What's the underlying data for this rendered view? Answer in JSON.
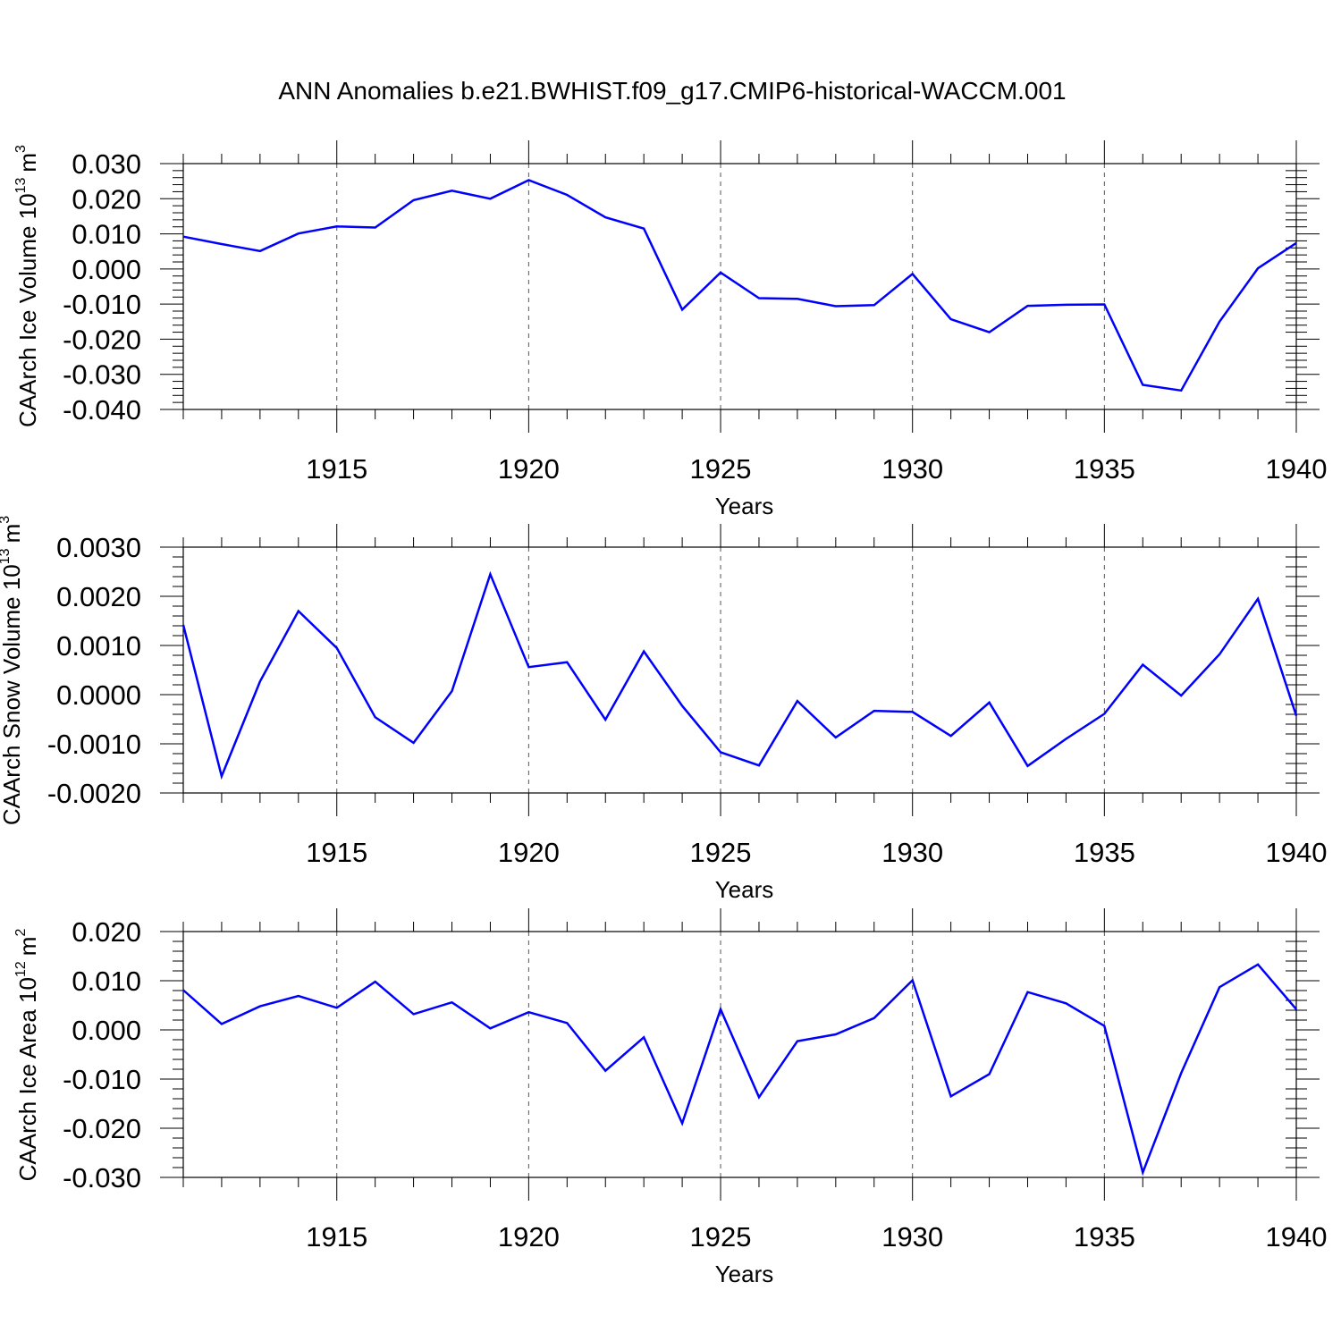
{
  "title": "ANN Anomalies b.e21.BWHIST.f09_g17.CMIP6-historical-WACCM.001",
  "chart_data": [
    {
      "type": "line",
      "ylabel_main": "CAArch Ice Volume 10",
      "ylabel_exp": "13",
      "ylabel_unit": "m",
      "ylabel_unit_exp": "3",
      "xlabel": "Years",
      "xlim": [
        1911,
        1940
      ],
      "ylim": [
        -0.04,
        0.03
      ],
      "yticks": [
        "0.030",
        "0.020",
        "0.010",
        "0.000",
        "-0.010",
        "-0.020",
        "-0.030",
        "-0.040"
      ],
      "ytick_values": [
        0.03,
        0.02,
        0.01,
        0.0,
        -0.01,
        -0.02,
        -0.03,
        -0.04
      ],
      "xticks": [
        "1915",
        "1920",
        "1925",
        "1930",
        "1935",
        "1940"
      ],
      "xtick_values": [
        1915,
        1920,
        1925,
        1930,
        1935,
        1940
      ],
      "color": "#0000ff",
      "x": [
        1911,
        1912,
        1913,
        1914,
        1915,
        1916,
        1917,
        1918,
        1919,
        1920,
        1921,
        1922,
        1923,
        1924,
        1925,
        1926,
        1927,
        1928,
        1929,
        1930,
        1931,
        1932,
        1933,
        1934,
        1935,
        1936,
        1937,
        1938,
        1939,
        1940
      ],
      "values": [
        0.0092,
        0.0071,
        0.0051,
        0.0101,
        0.0121,
        0.0118,
        0.0196,
        0.0223,
        0.02,
        0.0253,
        0.0211,
        0.0147,
        0.0115,
        -0.0116,
        -0.001,
        -0.0083,
        -0.0085,
        -0.0106,
        -0.0103,
        -0.0014,
        -0.0143,
        -0.018,
        -0.0105,
        -0.0102,
        -0.0101,
        -0.033,
        -0.0346,
        -0.015,
        0.0002,
        0.0074
      ]
    },
    {
      "type": "line",
      "ylabel_main": "CAArch Snow Volume 10",
      "ylabel_exp": "13",
      "ylabel_unit": "m",
      "ylabel_unit_exp": "3",
      "xlabel": "Years",
      "xlim": [
        1911,
        1940
      ],
      "ylim": [
        -0.002,
        0.003
      ],
      "yticks": [
        "0.0030",
        "0.0020",
        "0.0010",
        "0.0000",
        "-0.0010",
        "-0.0020"
      ],
      "ytick_values": [
        0.003,
        0.002,
        0.001,
        0.0,
        -0.001,
        -0.002
      ],
      "xticks": [
        "1915",
        "1920",
        "1925",
        "1930",
        "1935",
        "1940"
      ],
      "xtick_values": [
        1915,
        1920,
        1925,
        1930,
        1935,
        1940
      ],
      "color": "#0000ff",
      "x": [
        1911,
        1912,
        1913,
        1914,
        1915,
        1916,
        1917,
        1918,
        1919,
        1920,
        1921,
        1922,
        1923,
        1924,
        1925,
        1926,
        1927,
        1928,
        1929,
        1930,
        1931,
        1932,
        1933,
        1934,
        1935,
        1936,
        1937,
        1938,
        1939,
        1940
      ],
      "values": [
        0.00142,
        -0.00166,
        0.00027,
        0.0017,
        0.00095,
        -0.00046,
        -0.00098,
        7e-05,
        0.00245,
        0.00056,
        0.00066,
        -0.00051,
        0.00088,
        -0.00023,
        -0.00117,
        -0.00144,
        -0.00013,
        -0.00087,
        -0.00033,
        -0.00035,
        -0.00084,
        -0.00016,
        -0.00145,
        -0.0009,
        -0.00039,
        0.00061,
        -2e-05,
        0.00082,
        0.00195,
        -0.00043
      ]
    },
    {
      "type": "line",
      "ylabel_main": "CAArch Ice Area 10",
      "ylabel_exp": "12",
      "ylabel_unit": "m",
      "ylabel_unit_exp": "2",
      "xlabel": "Years",
      "xlim": [
        1911,
        1940
      ],
      "ylim": [
        -0.03,
        0.02
      ],
      "yticks": [
        "0.020",
        "0.010",
        "0.000",
        "-0.010",
        "-0.020",
        "-0.030"
      ],
      "ytick_values": [
        0.02,
        0.01,
        0.0,
        -0.01,
        -0.02,
        -0.03
      ],
      "xticks": [
        "1915",
        "1920",
        "1925",
        "1930",
        "1935",
        "1940"
      ],
      "xtick_values": [
        1915,
        1920,
        1925,
        1930,
        1935,
        1940
      ],
      "color": "#0000ff",
      "x": [
        1911,
        1912,
        1913,
        1914,
        1915,
        1916,
        1917,
        1918,
        1919,
        1920,
        1921,
        1922,
        1923,
        1924,
        1925,
        1926,
        1927,
        1928,
        1929,
        1930,
        1931,
        1932,
        1933,
        1934,
        1935,
        1936,
        1937,
        1938,
        1939,
        1940
      ],
      "values": [
        0.0081,
        0.0012,
        0.0048,
        0.0069,
        0.0045,
        0.0098,
        0.0032,
        0.0056,
        0.0003,
        0.0036,
        0.0014,
        -0.0083,
        -0.0015,
        -0.019,
        0.0042,
        -0.0137,
        -0.0023,
        -0.0009,
        0.0024,
        0.0101,
        -0.0135,
        -0.009,
        0.0077,
        0.0054,
        0.0008,
        -0.029,
        -0.0088,
        0.0087,
        0.0133,
        0.0042
      ]
    }
  ]
}
